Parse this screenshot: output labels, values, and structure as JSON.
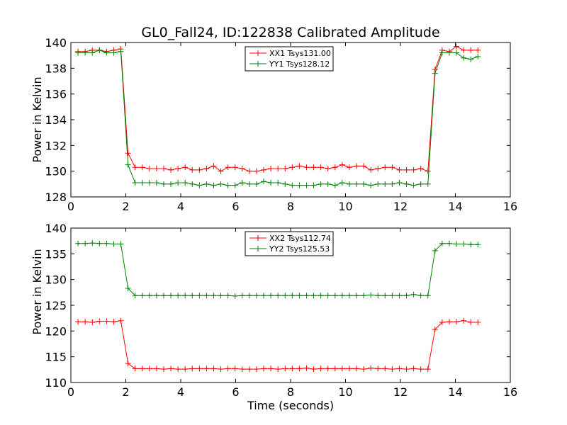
{
  "chart_data": [
    {
      "type": "line",
      "title": "GL0_Fall24, ID:122838 Calibrated Amplitude",
      "xlabel": "",
      "ylabel": "Power in Kelvin",
      "xlim": [
        0,
        16
      ],
      "ylim": [
        128,
        140
      ],
      "xticks": [
        "0",
        "2",
        "4",
        "6",
        "8",
        "10",
        "12",
        "14",
        "16"
      ],
      "yticks": [
        "128",
        "130",
        "132",
        "134",
        "136",
        "138",
        "140"
      ],
      "legend_position": "top-center",
      "x": [
        0.26,
        0.52,
        0.78,
        1.04,
        1.3,
        1.56,
        1.82,
        2.08,
        2.34,
        2.6,
        2.86,
        3.12,
        3.38,
        3.64,
        3.9,
        4.16,
        4.42,
        4.68,
        4.94,
        5.2,
        5.46,
        5.72,
        5.98,
        6.24,
        6.5,
        6.76,
        7.02,
        7.28,
        7.54,
        7.8,
        8.06,
        8.32,
        8.58,
        8.84,
        9.1,
        9.36,
        9.62,
        9.88,
        10.14,
        10.4,
        10.66,
        10.92,
        11.18,
        11.44,
        11.7,
        11.96,
        12.22,
        12.48,
        12.74,
        13.0,
        13.26,
        13.52,
        13.78,
        14.04,
        14.3,
        14.56,
        14.82
      ],
      "series": [
        {
          "name": "XX1 Tsys131.00",
          "color": "#ff0000",
          "values": [
            139.3,
            139.3,
            139.4,
            139.4,
            139.3,
            139.4,
            139.5,
            131.4,
            130.3,
            130.3,
            130.2,
            130.2,
            130.2,
            130.1,
            130.2,
            130.3,
            130.1,
            130.1,
            130.2,
            130.4,
            130.0,
            130.3,
            130.3,
            130.2,
            130.0,
            130.0,
            130.1,
            130.2,
            130.2,
            130.2,
            130.3,
            130.4,
            130.3,
            130.3,
            130.3,
            130.2,
            130.3,
            130.5,
            130.3,
            130.4,
            130.4,
            130.1,
            130.2,
            130.3,
            130.3,
            130.1,
            130.1,
            130.1,
            130.2,
            130.0,
            137.9,
            139.4,
            139.3,
            139.7,
            139.4,
            139.4,
            139.4
          ]
        },
        {
          "name": "YY1 Tsys128.12",
          "color": "#008000",
          "values": [
            139.2,
            139.2,
            139.2,
            139.4,
            139.2,
            139.2,
            139.3,
            130.5,
            129.1,
            129.1,
            129.1,
            129.1,
            129.0,
            129.0,
            129.1,
            129.1,
            129.0,
            128.9,
            129.0,
            128.9,
            129.0,
            128.9,
            128.9,
            129.1,
            129.0,
            129.0,
            129.2,
            129.1,
            129.1,
            129.0,
            128.9,
            128.9,
            128.9,
            128.9,
            129.0,
            129.0,
            128.9,
            129.1,
            129.0,
            129.0,
            129.0,
            128.9,
            129.0,
            129.0,
            129.0,
            129.1,
            129.0,
            128.9,
            129.0,
            129.0,
            137.6,
            139.2,
            139.2,
            139.2,
            138.8,
            138.7,
            138.9
          ]
        }
      ]
    },
    {
      "type": "line",
      "title": "",
      "xlabel": "Time (seconds)",
      "ylabel": "Power in Kelvin",
      "xlim": [
        0,
        16
      ],
      "ylim": [
        110,
        140
      ],
      "xticks": [
        "0",
        "2",
        "4",
        "6",
        "8",
        "10",
        "12",
        "14",
        "16"
      ],
      "yticks": [
        "110",
        "115",
        "120",
        "125",
        "130",
        "135",
        "140"
      ],
      "legend_position": "top-center",
      "x": [
        0.26,
        0.52,
        0.78,
        1.04,
        1.3,
        1.56,
        1.82,
        2.08,
        2.34,
        2.6,
        2.86,
        3.12,
        3.38,
        3.64,
        3.9,
        4.16,
        4.42,
        4.68,
        4.94,
        5.2,
        5.46,
        5.72,
        5.98,
        6.24,
        6.5,
        6.76,
        7.02,
        7.28,
        7.54,
        7.8,
        8.06,
        8.32,
        8.58,
        8.84,
        9.1,
        9.36,
        9.62,
        9.88,
        10.14,
        10.4,
        10.66,
        10.92,
        11.18,
        11.44,
        11.7,
        11.96,
        12.22,
        12.48,
        12.74,
        13.0,
        13.26,
        13.52,
        13.78,
        14.04,
        14.3,
        14.56,
        14.82
      ],
      "series": [
        {
          "name": "XX2 Tsys112.74",
          "color": "#ff0000",
          "values": [
            121.8,
            121.8,
            121.7,
            121.9,
            121.9,
            121.8,
            122.0,
            113.7,
            112.7,
            112.7,
            112.7,
            112.7,
            112.6,
            112.7,
            112.6,
            112.6,
            112.7,
            112.7,
            112.7,
            112.7,
            112.6,
            112.7,
            112.7,
            112.6,
            112.6,
            112.6,
            112.7,
            112.7,
            112.6,
            112.7,
            112.7,
            112.7,
            112.8,
            112.6,
            112.7,
            112.7,
            112.7,
            112.7,
            112.7,
            112.7,
            112.6,
            112.8,
            112.7,
            112.7,
            112.6,
            112.7,
            112.6,
            112.7,
            112.6,
            112.6,
            120.3,
            121.7,
            121.8,
            121.8,
            122.0,
            121.7,
            121.7
          ]
        },
        {
          "name": "YY2 Tsys125.53",
          "color": "#008000",
          "values": [
            137.0,
            137.0,
            137.1,
            137.0,
            137.0,
            136.9,
            136.9,
            128.3,
            126.9,
            126.9,
            126.9,
            126.9,
            126.9,
            126.9,
            126.9,
            126.9,
            126.9,
            126.9,
            126.9,
            126.9,
            126.9,
            126.9,
            126.8,
            126.9,
            126.9,
            126.9,
            126.9,
            126.9,
            126.9,
            126.9,
            126.9,
            126.9,
            126.9,
            126.9,
            126.9,
            126.9,
            126.9,
            126.9,
            126.9,
            126.9,
            126.9,
            127.0,
            126.9,
            126.9,
            126.9,
            126.9,
            126.9,
            127.1,
            126.9,
            126.9,
            135.6,
            137.0,
            137.0,
            136.9,
            136.9,
            136.8,
            136.8
          ]
        }
      ]
    }
  ]
}
